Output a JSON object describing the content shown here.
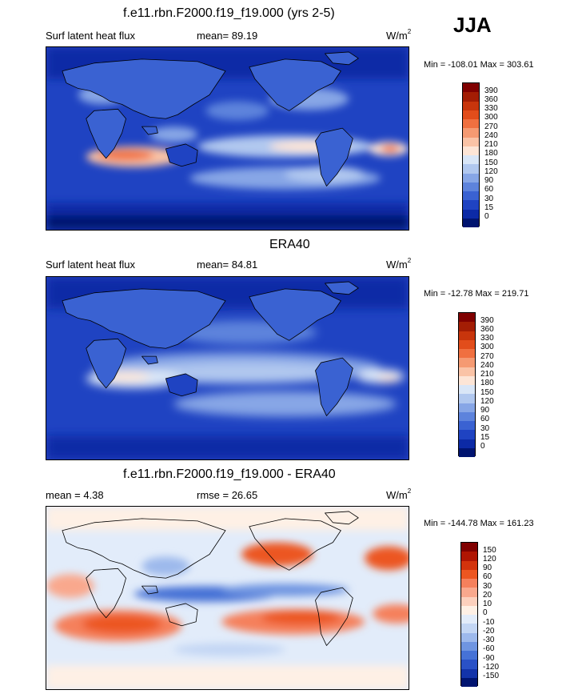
{
  "season": "JJA",
  "panels": [
    {
      "title": "f.e11.rbn.F2000.f19_f19.000 (yrs 2-5)",
      "left_label": "Surf latent heat flux",
      "mid_label": "mean=  89.19",
      "units_base": "W/m",
      "units_exp": "2",
      "minmax": "Min = -108.01 Max = 303.61",
      "colorbar": [
        "390",
        "360",
        "330",
        "300",
        "270",
        "240",
        "210",
        "180",
        "150",
        "120",
        "90",
        "60",
        "30",
        "15",
        "0"
      ]
    },
    {
      "title": "ERA40",
      "left_label": "Surf latent heat flux",
      "mid_label": "mean=  84.81",
      "units_base": "W/m",
      "units_exp": "2",
      "minmax": "Min = -12.78 Max = 219.71",
      "colorbar": [
        "390",
        "360",
        "330",
        "300",
        "270",
        "240",
        "210",
        "180",
        "150",
        "120",
        "90",
        "60",
        "30",
        "15",
        "0"
      ]
    },
    {
      "title": "f.e11.rbn.F2000.f19_f19.000 - ERA40",
      "left_label": "mean =   4.38",
      "mid_label": "rmse =  26.65",
      "units_base": "W/m",
      "units_exp": "2",
      "minmax": "Min = -144.78 Max = 161.23",
      "colorbar": [
        "150",
        "120",
        "90",
        "60",
        "30",
        "20",
        "10",
        "0",
        "-10",
        "-20",
        "-30",
        "-60",
        "-90",
        "-120",
        "-150"
      ]
    }
  ],
  "colors": {
    "abs_scale": [
      "#800000",
      "#a31d04",
      "#c8350c",
      "#e24d1b",
      "#f07040",
      "#f59a72",
      "#fac3a6",
      "#fde5d6",
      "#d9e6f7",
      "#b1c8ef",
      "#87a6e6",
      "#5d83dc",
      "#3a62d2",
      "#1f43c2",
      "#0c2aa6",
      "#001470"
    ],
    "diff_scale": [
      "#800000",
      "#b01503",
      "#d3330c",
      "#ec5621",
      "#f5805c",
      "#f9a88d",
      "#fcd0bd",
      "#fef0e5",
      "#e2ecfa",
      "#c3d6f4",
      "#9db9ec",
      "#6f95e1",
      "#4672d6",
      "#2a51c6",
      "#1333a9",
      "#001470"
    ]
  }
}
